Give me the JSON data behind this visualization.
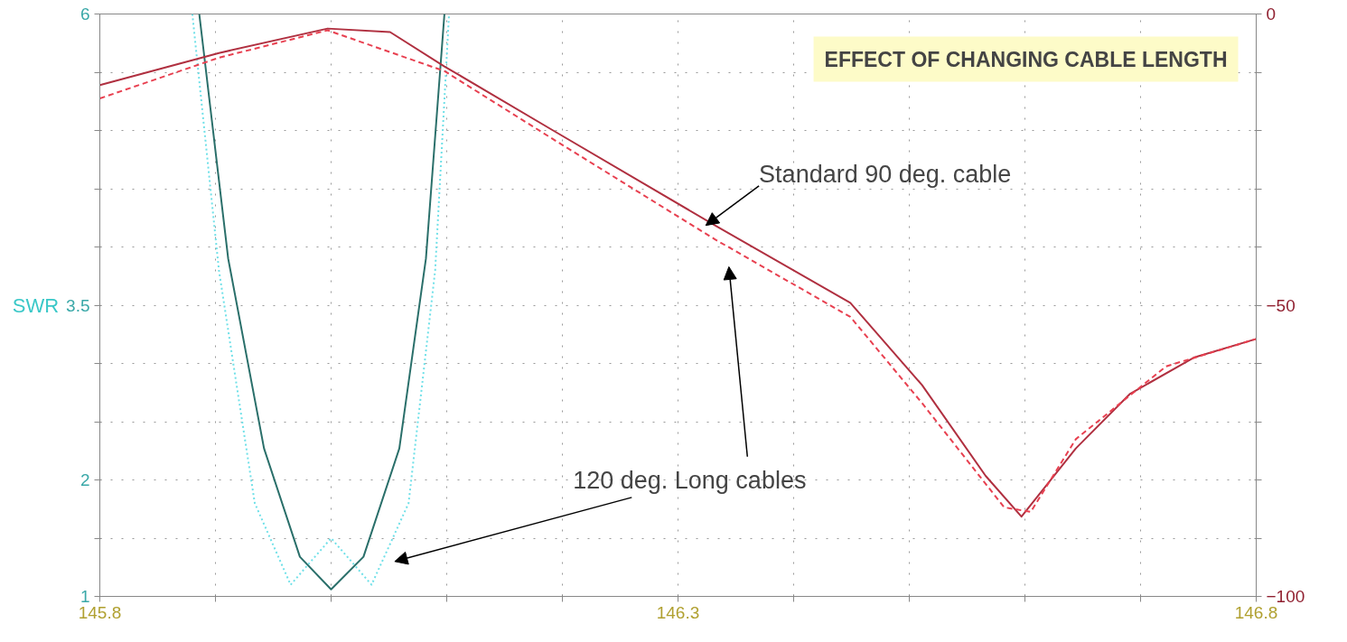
{
  "chart_data": {
    "type": "line",
    "title": "EFFECT OF CHANGING CABLE LENGTH",
    "ylabel": "SWR",
    "xlim": [
      145.8,
      146.8
    ],
    "xticks": [
      145.8,
      {
        "value": 145.9,
        "label": null
      },
      {
        "value": 146.0,
        "label": null
      },
      {
        "value": 146.1,
        "label": null
      },
      {
        "value": 146.2,
        "label": null
      },
      146.3,
      {
        "value": 146.4,
        "label": null
      },
      {
        "value": 146.5,
        "label": null
      },
      {
        "value": 146.6,
        "label": null
      },
      {
        "value": 146.7,
        "label": null
      },
      146.8
    ],
    "ylim": [
      1,
      6
    ],
    "yticks": [
      1,
      {
        "value": 1.5,
        "label": null
      },
      2,
      {
        "value": 2.5,
        "label": null
      },
      {
        "value": 3,
        "label": null
      },
      3.5,
      {
        "value": 4,
        "label": null
      },
      {
        "value": 4.5,
        "label": null
      },
      {
        "value": 5,
        "label": null
      },
      {
        "value": 5.5,
        "label": null
      },
      6
    ],
    "y2lim": [
      -100,
      0
    ],
    "y2ticks": [
      -100,
      {
        "value": -90,
        "label": null
      },
      {
        "value": -80,
        "label": null
      },
      {
        "value": -70,
        "label": null
      },
      {
        "value": -60,
        "label": null
      },
      -50,
      {
        "value": -40,
        "label": null
      },
      {
        "value": -30,
        "label": null
      },
      {
        "value": -20,
        "label": null
      },
      {
        "value": -10,
        "label": null
      },
      0
    ],
    "grid": true,
    "marker": "none",
    "series": [
      {
        "color": "#2a6f6a",
        "line_style": "solid",
        "x": [
          145.886,
          145.911,
          145.942,
          145.973,
          146.0,
          146.028,
          146.059,
          146.082,
          146.098
        ],
        "values": [
          6.0,
          3.9,
          2.27,
          1.34,
          1.06,
          1.34,
          2.27,
          3.9,
          6.0
        ]
      },
      {
        "color": "#6fe0e8",
        "line_style": "dotted",
        "x": [
          145.88,
          145.903,
          145.934,
          145.965,
          146.0,
          146.035,
          146.067,
          146.09,
          146.102
        ],
        "values": [
          6.0,
          3.8,
          1.8,
          1.1,
          1.5,
          1.1,
          1.8,
          3.8,
          6.0
        ]
      },
      {
        "color": "#b03040",
        "line_style": "solid",
        "axis": "y2",
        "x": [
          145.8,
          145.903,
          145.997,
          146.051,
          146.098,
          146.192,
          146.332,
          146.449,
          146.511,
          146.566,
          146.597,
          146.644,
          146.691,
          146.746,
          146.8
        ],
        "values": [
          -12.2,
          -6.7,
          -2.5,
          -3.1,
          -9,
          -20,
          -36.3,
          -49.6,
          -63.7,
          -79.3,
          -86.3,
          -74.6,
          -65.2,
          -59,
          -55.8
        ]
      },
      {
        "color": "#e84050",
        "line_style": "dashed",
        "axis": "y2",
        "x": [
          145.8,
          145.903,
          145.997,
          146.098,
          146.192,
          146.332,
          146.449,
          146.511,
          146.582,
          146.605,
          146.644,
          146.722,
          146.8
        ],
        "values": [
          -14.5,
          -7.5,
          -2.8,
          -9.8,
          -21.5,
          -38.7,
          -52,
          -66.8,
          -84.7,
          -85.5,
          -73,
          -60.5,
          -55.8
        ]
      }
    ],
    "annotations": [
      "Standard  90 deg.  cable",
      "120 deg. Long cables"
    ]
  }
}
